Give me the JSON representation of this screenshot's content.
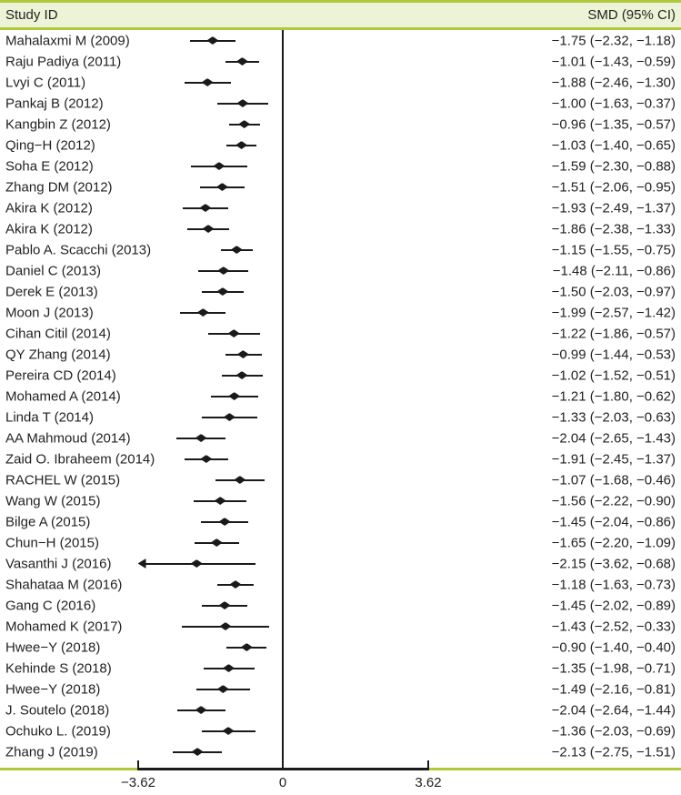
{
  "header": {
    "left": "Study ID",
    "right": "SMD (95% CI)"
  },
  "colors": {
    "accent_green": "#b2c93e",
    "header_bg": "#edf3d6",
    "ink": "#231f20",
    "mark": "#1a1a1a"
  },
  "chart_data": {
    "type": "scatter",
    "variant": "forest-plot",
    "title": "",
    "xlabel": "",
    "ylabel": "",
    "xlim": [
      -3.62,
      3.62
    ],
    "x_ticks": [
      -3.62,
      0,
      3.62
    ],
    "x_tick_labels": [
      "−3.62",
      "0",
      "3.62"
    ],
    "zero_reference_line": true,
    "grid": false,
    "studies": [
      {
        "name": "Mahalaxmi M (2009)",
        "smd": -1.75,
        "lo": -2.32,
        "hi": -1.18,
        "label": "−1.75 (−2.32, −1.18)"
      },
      {
        "name": "Raju Padiya (2011)",
        "smd": -1.01,
        "lo": -1.43,
        "hi": -0.59,
        "label": "−1.01 (−1.43, −0.59)"
      },
      {
        "name": "Lvyi C (2011)",
        "smd": -1.88,
        "lo": -2.46,
        "hi": -1.3,
        "label": "−1.88 (−2.46, −1.30)"
      },
      {
        "name": "Pankaj B (2012)",
        "smd": -1.0,
        "lo": -1.63,
        "hi": -0.37,
        "label": "−1.00 (−1.63, −0.37)"
      },
      {
        "name": "Kangbin Z (2012)",
        "smd": -0.96,
        "lo": -1.35,
        "hi": -0.57,
        "label": "−0.96 (−1.35, −0.57)"
      },
      {
        "name": "Qing−H (2012)",
        "smd": -1.03,
        "lo": -1.4,
        "hi": -0.65,
        "label": "−1.03 (−1.40, −0.65)"
      },
      {
        "name": "Soha E (2012)",
        "smd": -1.59,
        "lo": -2.3,
        "hi": -0.88,
        "label": "−1.59 (−2.30, −0.88)"
      },
      {
        "name": "Zhang DM (2012)",
        "smd": -1.51,
        "lo": -2.06,
        "hi": -0.95,
        "label": "−1.51 (−2.06, −0.95)"
      },
      {
        "name": "Akira K (2012)",
        "smd": -1.93,
        "lo": -2.49,
        "hi": -1.37,
        "label": "−1.93 (−2.49, −1.37)"
      },
      {
        "name": "Akira K (2012)",
        "smd": -1.86,
        "lo": -2.38,
        "hi": -1.33,
        "label": "−1.86 (−2.38, −1.33)"
      },
      {
        "name": "Pablo A. Scacchi (2013)",
        "smd": -1.15,
        "lo": -1.55,
        "hi": -0.75,
        "label": "−1.15 (−1.55, −0.75)"
      },
      {
        "name": "Daniel C (2013)",
        "smd": -1.48,
        "lo": -2.11,
        "hi": -0.86,
        "label": "−1.48 (−2.11, −0.86)"
      },
      {
        "name": "Derek E (2013)",
        "smd": -1.5,
        "lo": -2.03,
        "hi": -0.97,
        "label": "−1.50 (−2.03, −0.97)"
      },
      {
        "name": "Moon J (2013)",
        "smd": -1.99,
        "lo": -2.57,
        "hi": -1.42,
        "label": "−1.99 (−2.57, −1.42)"
      },
      {
        "name": "Cihan Citil (2014)",
        "smd": -1.22,
        "lo": -1.86,
        "hi": -0.57,
        "label": "−1.22 (−1.86, −0.57)"
      },
      {
        "name": "QY Zhang (2014)",
        "smd": -0.99,
        "lo": -1.44,
        "hi": -0.53,
        "label": "−0.99 (−1.44, −0.53)"
      },
      {
        "name": "Pereira CD (2014)",
        "smd": -1.02,
        "lo": -1.52,
        "hi": -0.51,
        "label": "−1.02 (−1.52, −0.51)"
      },
      {
        "name": "Mohamed A (2014)",
        "smd": -1.21,
        "lo": -1.8,
        "hi": -0.62,
        "label": "−1.21 (−1.80, −0.62)"
      },
      {
        "name": "Linda T (2014)",
        "smd": -1.33,
        "lo": -2.03,
        "hi": -0.63,
        "label": "−1.33 (−2.03, −0.63)"
      },
      {
        "name": "AA Mahmoud (2014)",
        "smd": -2.04,
        "lo": -2.65,
        "hi": -1.43,
        "label": "−2.04 (−2.65, −1.43)"
      },
      {
        "name": "Zaid O. Ibraheem (2014)",
        "smd": -1.91,
        "lo": -2.45,
        "hi": -1.37,
        "label": "−1.91 (−2.45, −1.37)"
      },
      {
        "name": "RACHEL W (2015)",
        "smd": -1.07,
        "lo": -1.68,
        "hi": -0.46,
        "label": "−1.07 (−1.68, −0.46)"
      },
      {
        "name": "Wang W (2015)",
        "smd": -1.56,
        "lo": -2.22,
        "hi": -0.9,
        "label": "−1.56 (−2.22, −0.90)"
      },
      {
        "name": "Bilge A (2015)",
        "smd": -1.45,
        "lo": -2.04,
        "hi": -0.86,
        "label": "−1.45 (−2.04, −0.86)"
      },
      {
        "name": "Chun−H (2015)",
        "smd": -1.65,
        "lo": -2.2,
        "hi": -1.09,
        "label": "−1.65 (−2.20, −1.09)"
      },
      {
        "name": "Vasanthi J (2016)",
        "smd": -2.15,
        "lo": -3.62,
        "hi": -0.68,
        "label": "−2.15 (−3.62, −0.68)"
      },
      {
        "name": "Shahataa M (2016)",
        "smd": -1.18,
        "lo": -1.63,
        "hi": -0.73,
        "label": "−1.18 (−1.63, −0.73)"
      },
      {
        "name": "Gang C (2016)",
        "smd": -1.45,
        "lo": -2.02,
        "hi": -0.89,
        "label": "−1.45 (−2.02, −0.89)"
      },
      {
        "name": "Mohamed K (2017)",
        "smd": -1.43,
        "lo": -2.52,
        "hi": -0.33,
        "label": "−1.43 (−2.52, −0.33)"
      },
      {
        "name": "Hwee−Y (2018)",
        "smd": -0.9,
        "lo": -1.4,
        "hi": -0.4,
        "label": "−0.90 (−1.40, −0.40)"
      },
      {
        "name": "Kehinde S (2018)",
        "smd": -1.35,
        "lo": -1.98,
        "hi": -0.71,
        "label": "−1.35 (−1.98, −0.71)"
      },
      {
        "name": "Hwee−Y (2018)",
        "smd": -1.49,
        "lo": -2.16,
        "hi": -0.81,
        "label": "−1.49 (−2.16, −0.81)"
      },
      {
        "name": "J. Soutelo (2018)",
        "smd": -2.04,
        "lo": -2.64,
        "hi": -1.44,
        "label": "−2.04 (−2.64, −1.44)"
      },
      {
        "name": "Ochuko L. (2019)",
        "smd": -1.36,
        "lo": -2.03,
        "hi": -0.69,
        "label": "−1.36 (−2.03, −0.69)"
      },
      {
        "name": "Zhang J (2019)",
        "smd": -2.13,
        "lo": -2.75,
        "hi": -1.51,
        "label": "−2.13 (−2.75, −1.51)"
      }
    ]
  }
}
